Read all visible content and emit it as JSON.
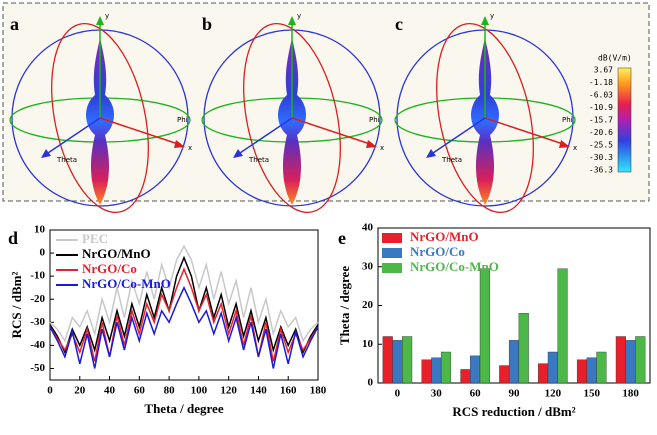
{
  "top_panels": [
    {
      "label": "a",
      "axis_labels": {
        "y": "y",
        "x": "x",
        "phi": "Phi",
        "theta": "Theta"
      }
    },
    {
      "label": "b",
      "axis_labels": {
        "y": "y",
        "x": "x",
        "phi": "Phi",
        "theta": "Theta"
      }
    },
    {
      "label": "c",
      "axis_labels": {
        "y": "y",
        "x": "x",
        "phi": "Phi",
        "theta": "Theta"
      }
    }
  ],
  "colorbar": {
    "title": "dB(V/m)",
    "tick_labels": [
      "3.67",
      "-1.18",
      "-6.03",
      "-10.9",
      "-15.7",
      "-20.6",
      "-25.5",
      "-30.3",
      "-36.3"
    ]
  },
  "chart_data": [
    {
      "type": "line",
      "panel": "d",
      "xlabel": "Theta / degree",
      "ylabel": "RCS / dBm²",
      "x": [
        0,
        5,
        10,
        15,
        20,
        25,
        30,
        35,
        40,
        45,
        50,
        55,
        60,
        65,
        70,
        75,
        80,
        85,
        90,
        95,
        100,
        105,
        110,
        115,
        120,
        125,
        130,
        135,
        140,
        145,
        150,
        155,
        160,
        165,
        170,
        175,
        180
      ],
      "xlim": [
        0,
        180
      ],
      "xticks": [
        0,
        20,
        40,
        60,
        80,
        100,
        120,
        140,
        160,
        180
      ],
      "ylim": [
        -55,
        10
      ],
      "yticks": [
        10,
        0,
        -10,
        -20,
        -30,
        -40,
        -50
      ],
      "legend": "upper left",
      "grid": false,
      "series": [
        {
          "name": "PEC",
          "color": "#c8c8c8",
          "values": [
            -30,
            -33,
            -38,
            -28,
            -32,
            -25,
            -35,
            -20,
            -30,
            -15,
            -28,
            -12,
            -22,
            -8,
            -20,
            -5,
            -15,
            -3,
            3,
            -3,
            -15,
            -5,
            -20,
            -8,
            -22,
            -12,
            -28,
            -15,
            -30,
            -20,
            -35,
            -25,
            -32,
            -28,
            -38,
            -33,
            -30
          ]
        },
        {
          "name": "NrGO/MnO",
          "color": "#000000",
          "values": [
            -31,
            -36,
            -43,
            -33,
            -40,
            -32,
            -42,
            -28,
            -38,
            -25,
            -36,
            -22,
            -32,
            -18,
            -28,
            -15,
            -25,
            -10,
            -2,
            -10,
            -25,
            -15,
            -28,
            -18,
            -32,
            -22,
            -36,
            -25,
            -38,
            -28,
            -42,
            -32,
            -40,
            -33,
            -43,
            -36,
            -31
          ]
        },
        {
          "name": "NrGO/Co",
          "color": "#e8202a",
          "values": [
            -32,
            -37,
            -42,
            -35,
            -43,
            -33,
            -47,
            -30,
            -45,
            -27,
            -40,
            -25,
            -35,
            -22,
            -30,
            -18,
            -25,
            -15,
            -7,
            -15,
            -25,
            -18,
            -30,
            -22,
            -35,
            -25,
            -40,
            -27,
            -45,
            -30,
            -47,
            -33,
            -43,
            -35,
            -42,
            -37,
            -32
          ]
        },
        {
          "name": "NrGO/Co-MnO",
          "color": "#1a1adc",
          "values": [
            -32,
            -38,
            -45,
            -34,
            -48,
            -35,
            -50,
            -33,
            -45,
            -30,
            -42,
            -28,
            -38,
            -26,
            -35,
            -25,
            -30,
            -22,
            -15,
            -22,
            -30,
            -25,
            -35,
            -26,
            -38,
            -28,
            -42,
            -30,
            -45,
            -33,
            -50,
            -35,
            -48,
            -34,
            -45,
            -38,
            -32
          ]
        }
      ]
    },
    {
      "type": "bar",
      "panel": "e",
      "xlabel": "RCS reduction / dBm²",
      "ylabel": "Theta / degree",
      "categories": [
        "0",
        "30",
        "60",
        "90",
        "120",
        "150",
        "180"
      ],
      "ylim": [
        0,
        40
      ],
      "yticks": [
        0,
        10,
        20,
        30,
        40
      ],
      "legend": "upper left",
      "grid": false,
      "series": [
        {
          "name": "NrGO/MnO",
          "color": "#e8202a",
          "values": [
            12,
            6,
            3.5,
            4.5,
            5,
            6,
            12
          ]
        },
        {
          "name": "NrGO/Co",
          "color": "#3a78c2",
          "values": [
            11,
            6.5,
            7,
            11,
            8,
            6.5,
            11
          ]
        },
        {
          "name": "NrGO/Co-MnO",
          "color": "#4cb848",
          "values": [
            12,
            8,
            29.5,
            18,
            29.5,
            8,
            12
          ]
        }
      ]
    }
  ]
}
